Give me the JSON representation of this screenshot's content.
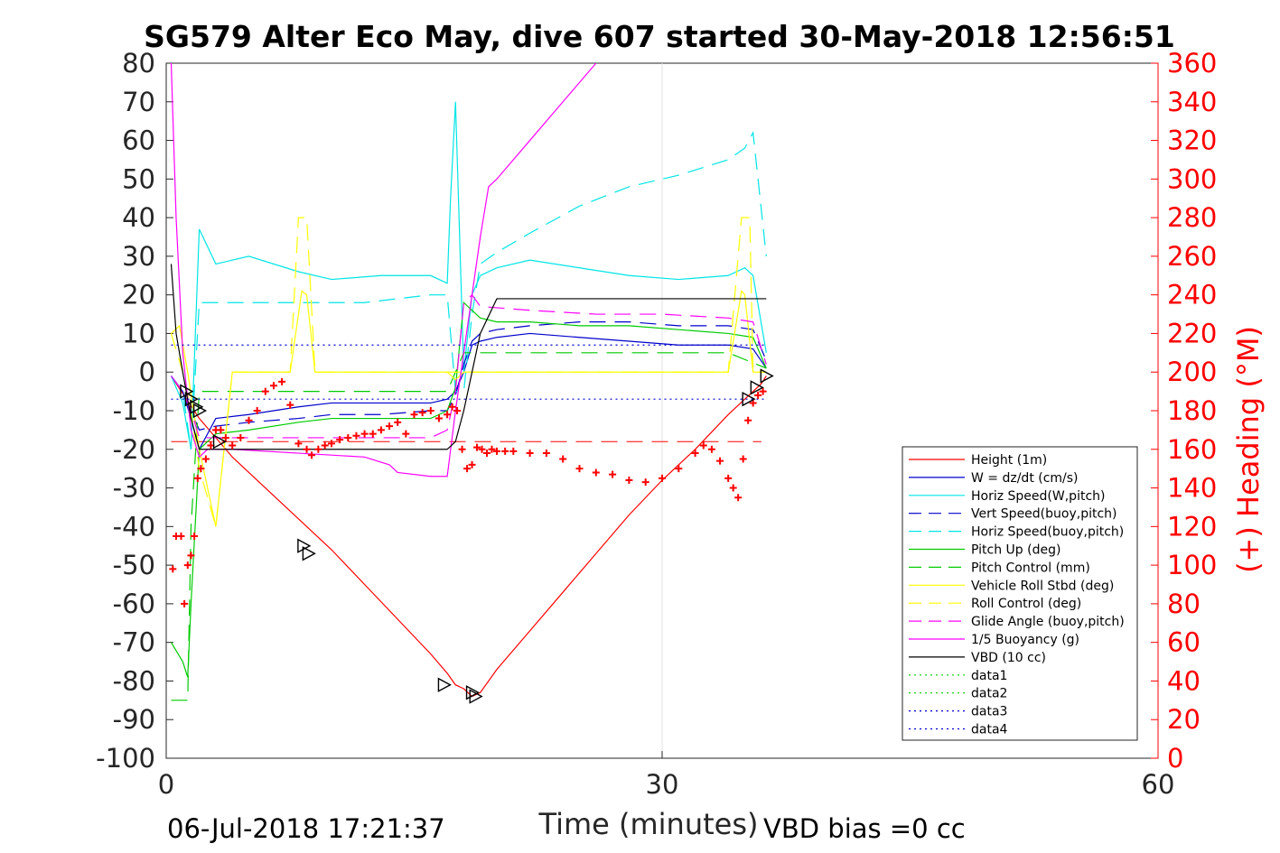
{
  "chart_data": {
    "type": "line",
    "title": "SG579 Alter Eco May, dive 607 started 30-May-2018 12:56:51",
    "xlabel": "Time (minutes)",
    "ylabel": "",
    "y2label": "(+) Heading (°M)",
    "xlim": [
      0,
      60
    ],
    "ylim": [
      -100,
      80
    ],
    "y2lim": [
      0,
      360
    ],
    "x_ticks": [
      "0",
      "30",
      "60"
    ],
    "y_ticks": [
      "80",
      "70",
      "60",
      "50",
      "40",
      "30",
      "20",
      "10",
      "0",
      "-10",
      "-20",
      "-30",
      "-40",
      "-50",
      "-60",
      "-70",
      "-80",
      "-90",
      "-100"
    ],
    "y2_ticks": [
      "360",
      "340",
      "320",
      "300",
      "280",
      "260",
      "240",
      "220",
      "200",
      "180",
      "160",
      "140",
      "120",
      "100",
      "80",
      "60",
      "40",
      "20",
      "0"
    ],
    "grid_x": [
      30
    ],
    "legend_position": "lower-right",
    "footer_left": "06-Jul-2018 17:21:37",
    "footer_right": "VBD bias =0 cc",
    "series": [
      {
        "name": "Height (1m)",
        "color": "#ff0000",
        "style": "solid",
        "x": [
          0.3,
          2,
          4,
          6,
          8,
          10,
          12,
          14,
          16,
          17,
          17.5,
          18,
          18.5,
          19,
          20,
          22,
          24,
          26,
          28,
          30,
          32,
          34,
          35,
          36,
          36.3
        ],
        "y": [
          -1,
          -12,
          -22,
          -30,
          -38,
          -46,
          -55,
          -64,
          -73,
          -78,
          -81,
          -82,
          -84,
          -83,
          -77,
          -67,
          -57,
          -47,
          -37,
          -28,
          -20,
          -11,
          -7,
          -3,
          -1
        ]
      },
      {
        "name": "W = dz/dt (cm/s)",
        "color": "#0000cc",
        "style": "solid",
        "x": [
          0.3,
          1,
          1.5,
          2,
          3,
          5,
          8,
          10,
          13,
          16,
          17,
          17.5,
          18,
          18.5,
          19,
          20,
          22,
          25,
          28,
          31,
          34,
          35.5,
          36.3
        ],
        "y": [
          -1,
          -5,
          -12,
          -20,
          -12,
          -11,
          -9,
          -8,
          -8,
          -8,
          -7,
          -5,
          0,
          7,
          8,
          9,
          10,
          9,
          8,
          7,
          7,
          6,
          1
        ]
      },
      {
        "name": "Horiz Speed(W,pitch)",
        "color": "#00e5e5",
        "style": "solid",
        "x": [
          0.3,
          1,
          1.5,
          2,
          3,
          5,
          8,
          10,
          13,
          16,
          17,
          17.2,
          17.5,
          18,
          18.5,
          19,
          20,
          22,
          25,
          28,
          31,
          34,
          35,
          35.5,
          36.3
        ],
        "y": [
          -1,
          -8,
          -20,
          37,
          28,
          30,
          26,
          24,
          25,
          25,
          23,
          45,
          70,
          0,
          20,
          25,
          27,
          29,
          27,
          25,
          24,
          25,
          27,
          25,
          5
        ]
      },
      {
        "name": "Vert Speed(buoy,pitch)",
        "color": "#0000cc",
        "style": "dashed",
        "x": [
          0.3,
          1,
          1.5,
          2,
          3,
          5,
          8,
          10,
          13,
          16,
          17,
          17.5,
          18,
          18.5,
          19,
          20,
          22,
          25,
          28,
          31,
          34,
          35.5,
          36.3
        ],
        "y": [
          -1,
          -5,
          -10,
          -15,
          -14,
          -13,
          -12,
          -11,
          -11,
          -10,
          -10,
          -6,
          2,
          8,
          10,
          11,
          12,
          13,
          13,
          12,
          12,
          11,
          3
        ]
      },
      {
        "name": "Horiz Speed(buoy,pitch)",
        "color": "#00e5e5",
        "style": "dashed",
        "x": [
          0.3,
          1,
          1.5,
          2,
          4,
          8,
          12,
          16,
          17,
          17.5,
          18,
          18.5,
          19,
          20,
          22,
          25,
          28,
          31,
          34,
          35,
          35.5,
          36.3
        ],
        "y": [
          -1,
          -5,
          -20,
          18,
          18,
          18,
          18,
          20,
          20,
          -5,
          -5,
          15,
          28,
          31,
          36,
          43,
          48,
          51,
          55,
          58,
          62,
          30
        ]
      },
      {
        "name": "Pitch Up (deg)",
        "color": "#00cc00",
        "style": "solid",
        "x": [
          0.3,
          1,
          1.3,
          1.5,
          2,
          3,
          5,
          8,
          10,
          13,
          16,
          17,
          17.5,
          18,
          18.5,
          19,
          20,
          22,
          25,
          28,
          31,
          34,
          35.5,
          36.3
        ],
        "y": [
          -70,
          -75,
          -79,
          -60,
          -20,
          -16,
          -15,
          -13,
          -12,
          -12,
          -12,
          -10,
          -4,
          18,
          16,
          14,
          13,
          13,
          12,
          12,
          11,
          10,
          9,
          1
        ]
      },
      {
        "name": "Pitch Control (mm)",
        "color": "#00cc00",
        "style": "dashed",
        "x": [
          0.3,
          1,
          1.3,
          1.5,
          2,
          4,
          8,
          12,
          16,
          17,
          17.5,
          18,
          18.5,
          19,
          22,
          26,
          30,
          34,
          36.3
        ],
        "y": [
          -85,
          -85,
          -85,
          -40,
          -5,
          -5,
          -5,
          -5,
          -5,
          -5,
          0,
          5,
          5,
          5,
          5,
          5,
          5,
          5,
          1
        ]
      },
      {
        "name": "Vehicle Roll Stbd (deg)",
        "color": "#ffff00",
        "style": "solid",
        "x": [
          0.3,
          0.8,
          1.3,
          2,
          3,
          4,
          7.5,
          8.2,
          8.5,
          9,
          12,
          16,
          17,
          17.5,
          18,
          22,
          26,
          30,
          34,
          34.8,
          35,
          35.5,
          36.3
        ],
        "y": [
          10,
          12,
          0,
          -20,
          -40,
          0,
          0,
          21,
          20,
          0,
          0,
          0,
          0,
          -2,
          0,
          0,
          0,
          0,
          0,
          21,
          20,
          0,
          0
        ]
      },
      {
        "name": "Roll Control (deg)",
        "color": "#ffff00",
        "style": "dashed",
        "x": [
          0.3,
          1,
          1.5,
          2,
          3,
          4,
          7.5,
          8,
          8.5,
          9,
          12,
          16,
          17,
          18,
          22,
          26,
          30,
          34,
          34.8,
          35.3,
          35.5,
          36.3
        ],
        "y": [
          10,
          0,
          -10,
          -25,
          -40,
          0,
          0,
          40,
          40,
          0,
          0,
          0,
          0,
          0,
          0,
          0,
          0,
          0,
          40,
          40,
          0,
          0
        ]
      },
      {
        "name": "Glide Angle (buoy,pitch)",
        "color": "#ff00ff",
        "style": "dashed",
        "x": [
          0.3,
          1,
          1.5,
          2,
          4,
          8,
          12,
          16,
          17,
          17.5,
          18,
          18.5,
          19,
          22,
          26,
          30,
          34,
          35.5,
          36.3
        ],
        "y": [
          -1,
          -5,
          -10,
          -17,
          -17,
          -17,
          -17,
          -17,
          -15,
          -5,
          18,
          20,
          17,
          16,
          15,
          15,
          14,
          13,
          2
        ]
      },
      {
        "name": "1/5 Buoyancy (g)",
        "color": "#ff00ff",
        "style": "solid",
        "x": [
          0.3,
          0.6,
          1,
          1.5,
          2,
          2.5,
          4,
          8,
          12,
          13.5,
          14,
          16,
          17,
          17.5,
          18,
          18.5,
          19,
          19.5,
          20,
          22,
          24,
          26
        ],
        "y": [
          80,
          40,
          5,
          -15,
          -22,
          -20,
          -20,
          -21,
          -22,
          -24,
          -26,
          -27,
          -27,
          -10,
          5,
          20,
          35,
          48,
          50,
          60,
          70,
          80
        ]
      },
      {
        "name": "VBD (10 cc)",
        "color": "#000000",
        "style": "solid",
        "x": [
          0.3,
          0.6,
          1,
          1.5,
          2,
          4,
          8,
          12,
          16,
          17,
          17.5,
          18,
          18.5,
          19,
          20,
          22,
          26,
          30,
          34,
          36.3
        ],
        "y": [
          28,
          10,
          0,
          -12,
          -20,
          -20,
          -20,
          -20,
          -20,
          -20,
          -18,
          -10,
          0,
          10,
          19,
          19,
          19,
          19,
          19,
          19
        ]
      },
      {
        "name": "data1",
        "color": "#00cc00",
        "style": "dotted",
        "x": [],
        "y": []
      },
      {
        "name": "data2",
        "color": "#00cc00",
        "style": "dotted",
        "x": [],
        "y": []
      },
      {
        "name": "data3",
        "color": "#0000cc",
        "style": "dotted",
        "x": [
          0.3,
          36.3
        ],
        "y": [
          7,
          7
        ]
      },
      {
        "name": "data4",
        "color": "#0000cc",
        "style": "dotted",
        "x": [
          0.3,
          36.3
        ],
        "y": [
          -7,
          -7
        ]
      }
    ],
    "reference_lines": [
      {
        "color": "#ff0000",
        "style": "dashed",
        "x": [
          0.3,
          36
        ],
        "y": [
          -18,
          -18
        ]
      }
    ],
    "heading_points": {
      "color": "#ff0000",
      "axis": "right",
      "x": [
        0.4,
        0.6,
        0.9,
        1.1,
        1.3,
        1.5,
        1.7,
        1.9,
        2.1,
        2.4,
        2.7,
        3.0,
        3.3,
        3.6,
        4.0,
        4.5,
        5.0,
        5.5,
        6.0,
        6.5,
        7.0,
        7.5,
        8.0,
        8.5,
        8.8,
        9.2,
        9.6,
        10.0,
        10.5,
        11.0,
        11.5,
        12.0,
        12.5,
        13.0,
        13.5,
        14.0,
        14.5,
        15.0,
        15.5,
        16.0,
        16.5,
        17.0,
        17.3,
        17.6,
        17.9,
        18.2,
        18.5,
        18.8,
        19.1,
        19.4,
        19.7,
        20.0,
        20.5,
        21.0,
        22.0,
        23.0,
        24.0,
        25.0,
        26.0,
        27.0,
        28.0,
        29.0,
        30.0,
        31.0,
        32.0,
        32.5,
        33.0,
        33.5,
        34.0,
        34.3,
        34.6,
        34.9,
        35.2,
        35.5,
        35.8,
        36.1
      ],
      "y": [
        98,
        115,
        115,
        80,
        100,
        105,
        115,
        145,
        150,
        155,
        162,
        170,
        170,
        166,
        162,
        166,
        175,
        180,
        190,
        193,
        195,
        183,
        163,
        160,
        157,
        160,
        162,
        163,
        165,
        166,
        167,
        168,
        168,
        170,
        172,
        174,
        168,
        178,
        179,
        180,
        176,
        178,
        182,
        180,
        160,
        150,
        152,
        161,
        160,
        158,
        160,
        159,
        159,
        159,
        158,
        158,
        155,
        150,
        148,
        147,
        144,
        143,
        145,
        150,
        158,
        162,
        160,
        154,
        145,
        140,
        135,
        155,
        175,
        184,
        188,
        190
      ]
    },
    "triangle_markers": {
      "x": [
        1.2,
        1.5,
        1.8,
        2.0,
        3.2,
        8.3,
        8.6,
        16.8,
        18.5,
        18.7,
        35.2,
        35.7,
        36.3
      ],
      "y": [
        -5,
        -7,
        -9,
        -10,
        -18,
        -45,
        -47,
        -81,
        -83,
        -84,
        -7,
        -4,
        -1
      ],
      "y_mode": "left"
    }
  }
}
